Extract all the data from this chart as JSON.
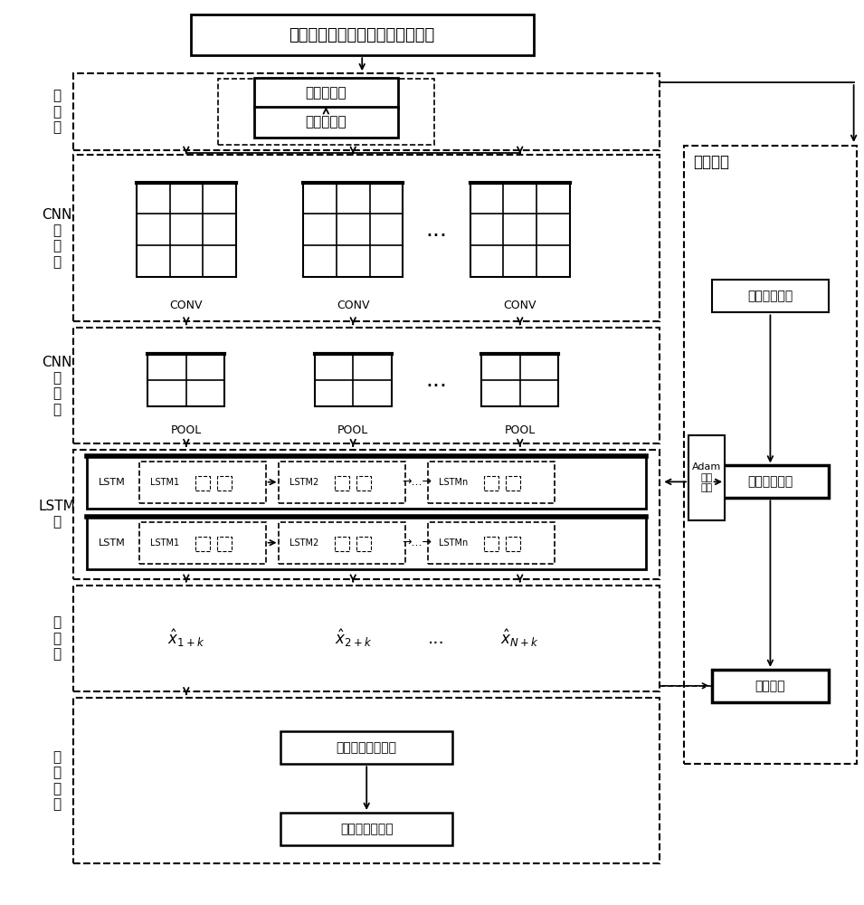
{
  "title": "实时运行温度变化的时空特征矩阵",
  "bg_color": "#ffffff",
  "input_boxes": [
    "获取训练集",
    "数据归一化"
  ],
  "conv_labels": [
    "CONV",
    "CONV",
    "CONV"
  ],
  "pool_labels": [
    "POOL",
    "POOL",
    "POOL"
  ],
  "output_labels": [
    "$\\hat{x}_{1+k}$",
    "$\\hat{x}_{2+k}$",
    "$\\hat{x}_{N+k}$"
  ],
  "model_predict_boxes": [
    "对测试集进行预测",
    "预测结果可视化"
  ],
  "right_panel_label": "模型训练",
  "right_boxes": [
    "客流分布情况",
    "损失函数计算",
    "预测温度"
  ],
  "adam_label": "Adam\n优化\n算法",
  "layer_labels": [
    [
      "输",
      "入",
      "层"
    ],
    [
      "C",
      "N",
      "N",
      "卷",
      "积",
      "层"
    ],
    [
      "C",
      "N",
      "N",
      "池",
      "化",
      "层"
    ],
    [
      "L",
      "S",
      "T",
      "M",
      "层"
    ],
    [
      "输",
      "出",
      "层"
    ],
    [
      "模",
      "型",
      "预",
      "测"
    ]
  ]
}
